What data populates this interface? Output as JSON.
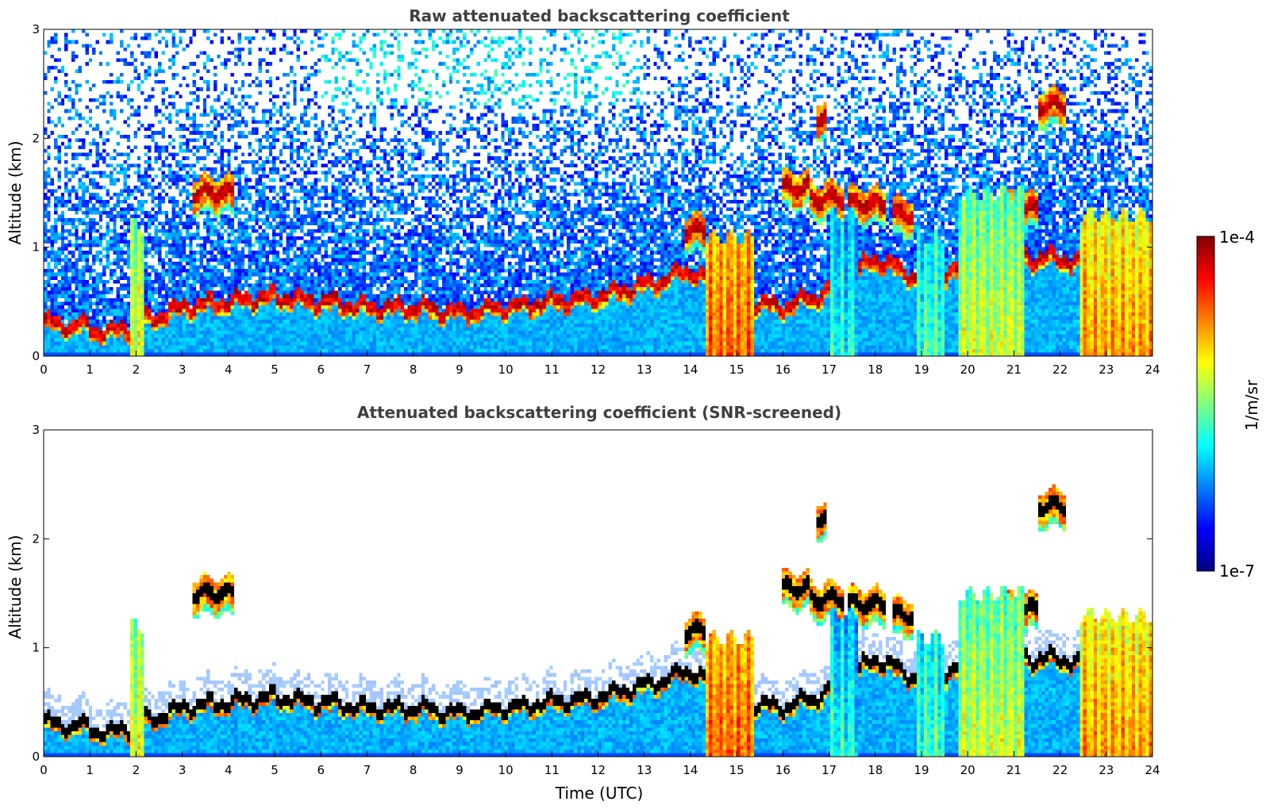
{
  "chart_data": [
    {
      "type": "heatmap",
      "title": "Raw attenuated backscattering coefficient",
      "xlabel": "",
      "ylabel": "Altitude (km)",
      "xlim": [
        0,
        24
      ],
      "ylim": [
        0,
        3
      ],
      "xticks": [
        "0",
        "1",
        "2",
        "3",
        "4",
        "5",
        "6",
        "7",
        "8",
        "9",
        "10",
        "11",
        "12",
        "13",
        "14",
        "15",
        "16",
        "17",
        "18",
        "19",
        "20",
        "21",
        "22",
        "23",
        "24"
      ],
      "yticks": [
        "0",
        "1",
        "2",
        "3"
      ],
      "screened": false
    },
    {
      "type": "heatmap",
      "title": "Attenuated backscattering coefficient (SNR-screened)",
      "xlabel": "Time (UTC)",
      "ylabel": "Altitude (km)",
      "xlim": [
        0,
        24
      ],
      "ylim": [
        0,
        3
      ],
      "xticks": [
        "0",
        "1",
        "2",
        "3",
        "4",
        "5",
        "6",
        "7",
        "8",
        "9",
        "10",
        "11",
        "12",
        "13",
        "14",
        "15",
        "16",
        "17",
        "18",
        "19",
        "20",
        "21",
        "22",
        "23",
        "24"
      ],
      "yticks": [
        "0",
        "1",
        "2",
        "3"
      ],
      "screened": true
    }
  ],
  "colorbar": {
    "label": "1/m/sr",
    "max_label": "1e-4",
    "min_label": "1e-7",
    "colormap": [
      "#00007f",
      "#0000ff",
      "#007fff",
      "#00ffff",
      "#7fff7f",
      "#ffff00",
      "#ff7f00",
      "#ff0000",
      "#7f0000"
    ]
  },
  "features": {
    "boundary_layer": [
      [
        0,
        0.32
      ],
      [
        0.8,
        0.28
      ],
      [
        1.5,
        0.22
      ],
      [
        2,
        0.3
      ],
      [
        3,
        0.45
      ],
      [
        4,
        0.5
      ],
      [
        5,
        0.55
      ],
      [
        6,
        0.5
      ],
      [
        7,
        0.45
      ],
      [
        8,
        0.45
      ],
      [
        9,
        0.4
      ],
      [
        10,
        0.45
      ],
      [
        11,
        0.5
      ],
      [
        12,
        0.55
      ],
      [
        13,
        0.65
      ],
      [
        14,
        0.8
      ],
      [
        15,
        0.5
      ],
      [
        16,
        0.45
      ],
      [
        17,
        0.6
      ],
      [
        18,
        0.9
      ],
      [
        19,
        0.7
      ],
      [
        20,
        0.8
      ],
      [
        21,
        0.9
      ],
      [
        22,
        0.9
      ],
      [
        23,
        0.8
      ],
      [
        24,
        0.7
      ]
    ],
    "cloud_layers": [
      {
        "t0": 3.2,
        "t1": 4.1,
        "alt": 1.5
      },
      {
        "t0": 16.0,
        "t1": 16.6,
        "alt": 1.55
      },
      {
        "t0": 16.6,
        "t1": 17.3,
        "alt": 1.45
      },
      {
        "t0": 17.4,
        "t1": 18.2,
        "alt": 1.4
      },
      {
        "t0": 18.4,
        "t1": 18.8,
        "alt": 1.3
      },
      {
        "t0": 20.7,
        "t1": 21.5,
        "alt": 1.35
      },
      {
        "t0": 16.75,
        "t1": 16.95,
        "alt": 2.2
      },
      {
        "t0": 21.5,
        "t1": 22.1,
        "alt": 2.3
      },
      {
        "t0": 13.9,
        "t1": 14.3,
        "alt": 1.15
      }
    ],
    "precip_columns": [
      {
        "t0": 14.3,
        "t1": 15.4,
        "top": 1.1,
        "level": 0.78
      },
      {
        "t0": 19.8,
        "t1": 21.2,
        "top": 1.5,
        "level": 0.58
      },
      {
        "t0": 22.4,
        "t1": 24.0,
        "top": 1.3,
        "level": 0.72
      },
      {
        "t0": 1.9,
        "t1": 2.2,
        "top": 1.2,
        "level": 0.6
      },
      {
        "t0": 18.9,
        "t1": 19.5,
        "top": 1.1,
        "level": 0.45
      },
      {
        "t0": 17.0,
        "t1": 17.6,
        "top": 1.3,
        "level": 0.4
      }
    ]
  }
}
